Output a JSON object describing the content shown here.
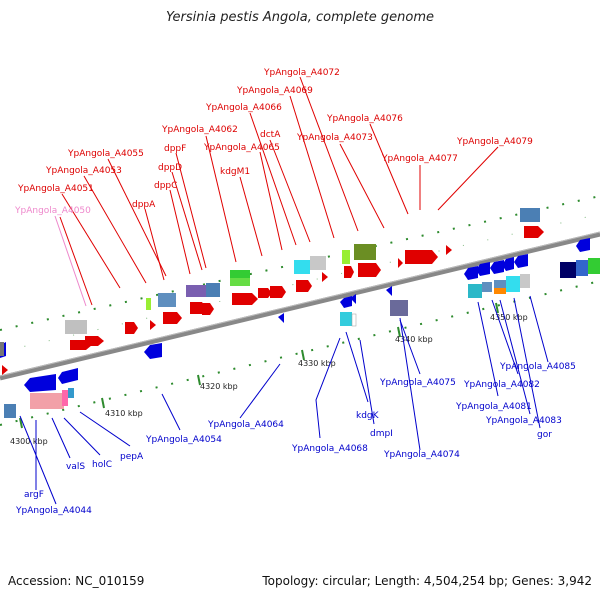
{
  "title": "Yersinia pestis Angola, complete genome",
  "footer": {
    "accession": "Accession: NC_010159",
    "summary": "Topology: circular; Length: 4,504,254 bp; Genes: 3,942"
  },
  "colors": {
    "upper_label": "#dd0000",
    "lower_label": "#0000cc",
    "faint_label": "#ee88cc",
    "backbone": "#888888",
    "tick": "#2e8b2e"
  },
  "scale_labels": [
    "4300 kbp",
    "4310 kbp",
    "4320 kbp",
    "4330 kbp",
    "4340 kbp",
    "4350 kbp"
  ],
  "upper_labels": [
    "YpAngola_A4050",
    "YpAngola_A4051",
    "YpAngola_A4053",
    "YpAngola_A4055",
    "dppA",
    "dppC",
    "dppD",
    "dppF",
    "YpAngola_A4062",
    "kdgM1",
    "YpAngola_A4065",
    "YpAngola_A4066",
    "dctA",
    "YpAngola_A4069",
    "YpAngola_A4072",
    "YpAngola_A4073",
    "YpAngola_A4076",
    "YpAngola_A4077",
    "YpAngola_A4079"
  ],
  "lower_labels": [
    "YpAngola_A4044",
    "argF",
    "valS",
    "holC",
    "pepA",
    "YpAngola_A4054",
    "YpAngola_A4064",
    "YpAngola_A4068",
    "kdgK",
    "dmpI",
    "YpAngola_A4074",
    "YpAngola_A4075",
    "YpAngola_A4081",
    "YpAngola_A4082",
    "YpAngola_A4083",
    "gor",
    "YpAngola_A4085"
  ]
}
